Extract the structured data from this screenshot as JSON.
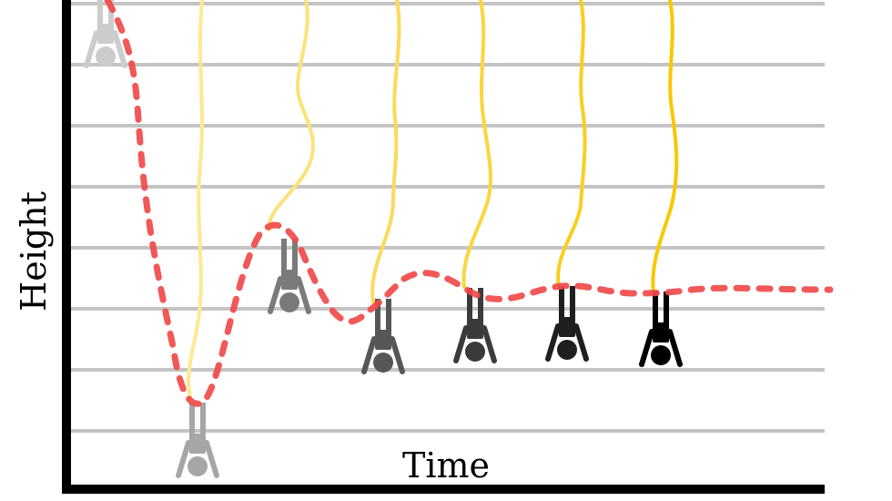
{
  "axes": {
    "y_label": "Height",
    "x_label": "Time"
  },
  "colors": {
    "grid": "#c4c4c4",
    "axis": "#000000",
    "trajectory": "#f04a4a",
    "cord": [
      "#fff1b8",
      "#fde98f",
      "#fce27a",
      "#fbda5c",
      "#fad53e",
      "#f9cf1e",
      "#f8c800"
    ],
    "jumper": [
      "#cccccc",
      "#a6a6a6",
      "#7a7a7a",
      "#575757",
      "#3b3b3b",
      "#1f1f1f",
      "#000000"
    ]
  },
  "jumpers": [
    {
      "name": "jumper-1"
    },
    {
      "name": "jumper-2"
    },
    {
      "name": "jumper-3"
    },
    {
      "name": "jumper-4"
    },
    {
      "name": "jumper-5"
    },
    {
      "name": "jumper-6"
    },
    {
      "name": "jumper-7"
    }
  ]
}
